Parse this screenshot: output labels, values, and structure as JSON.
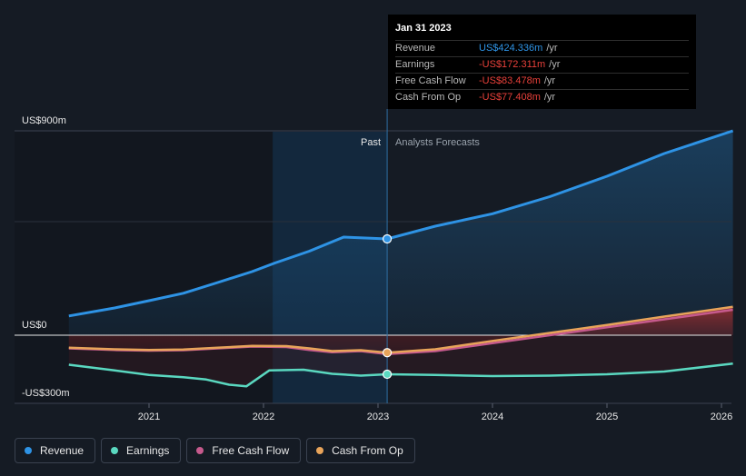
{
  "chart_data": {
    "type": "line",
    "y_labels": [
      "US$900m",
      "US$0",
      "-US$300m"
    ],
    "x_ticks": [
      "2021",
      "2022",
      "2023",
      "2024",
      "2025",
      "2026"
    ],
    "past_label": "Past",
    "forecast_label": "Analysts Forecasts",
    "ylim": [
      -300,
      900
    ],
    "units": "US$m",
    "series": [
      {
        "name": "Revenue",
        "color": "#2e93e5",
        "x": [
          2020.3,
          2020.7,
          2021.0,
          2021.3,
          2021.6,
          2021.9,
          2022.1,
          2022.4,
          2022.7,
          2023.08,
          2023.5,
          2024.0,
          2024.5,
          2025.0,
          2025.5,
          2026.1
        ],
        "y": [
          85,
          120,
          152,
          185,
          232,
          280,
          318,
          370,
          432,
          424,
          480,
          535,
          610,
          700,
          800,
          900
        ]
      },
      {
        "name": "Earnings",
        "color": "#5ad8c0",
        "x": [
          2020.3,
          2020.7,
          2021.0,
          2021.3,
          2021.5,
          2021.7,
          2021.85,
          2022.05,
          2022.35,
          2022.6,
          2022.85,
          2023.08,
          2023.5,
          2024.0,
          2024.5,
          2025.0,
          2025.5,
          2026.1
        ],
        "y": [
          -130,
          -155,
          -175,
          -185,
          -195,
          -218,
          -225,
          -155,
          -152,
          -170,
          -178,
          -172,
          -175,
          -180,
          -178,
          -172,
          -160,
          -125
        ]
      },
      {
        "name": "Free Cash Flow",
        "color": "#c65a8d",
        "x": [
          2020.3,
          2020.7,
          2021.0,
          2021.3,
          2021.6,
          2021.9,
          2022.2,
          2022.4,
          2022.6,
          2022.85,
          2023.08,
          2023.5,
          2024.0,
          2024.5,
          2025.0,
          2025.5,
          2026.1
        ],
        "y": [
          -58,
          -65,
          -68,
          -66,
          -58,
          -50,
          -52,
          -65,
          -75,
          -70,
          -83,
          -70,
          -35,
          0,
          35,
          70,
          112
        ]
      },
      {
        "name": "Cash From Op",
        "color": "#e8a45a",
        "x": [
          2020.3,
          2020.7,
          2021.0,
          2021.3,
          2021.6,
          2021.9,
          2022.2,
          2022.4,
          2022.6,
          2022.85,
          2023.08,
          2023.5,
          2024.0,
          2024.5,
          2025.0,
          2025.5,
          2026.1
        ],
        "y": [
          -55,
          -62,
          -65,
          -63,
          -55,
          -47,
          -48,
          -58,
          -70,
          -66,
          -77,
          -62,
          -25,
          10,
          45,
          82,
          125
        ]
      }
    ],
    "marker_x": 2023.08,
    "marker_values": {
      "Revenue": 424,
      "Earnings": -172,
      "Cash From Op": -77
    }
  },
  "tooltip": {
    "date": "Jan 31 2023",
    "rows": [
      {
        "label": "Revenue",
        "value": "US$424.336m",
        "unit": "/yr",
        "color": "#2e93e5"
      },
      {
        "label": "Earnings",
        "value": "-US$172.311m",
        "unit": "/yr",
        "color": "#e8403a"
      },
      {
        "label": "Free Cash Flow",
        "value": "-US$83.478m",
        "unit": "/yr",
        "color": "#e8403a"
      },
      {
        "label": "Cash From Op",
        "value": "-US$77.408m",
        "unit": "/yr",
        "color": "#e8403a"
      }
    ]
  },
  "legend": [
    {
      "label": "Revenue",
      "color": "#2e93e5"
    },
    {
      "label": "Earnings",
      "color": "#5ad8c0"
    },
    {
      "label": "Free Cash Flow",
      "color": "#c65a8d"
    },
    {
      "label": "Cash From Op",
      "color": "#e8a45a"
    }
  ]
}
